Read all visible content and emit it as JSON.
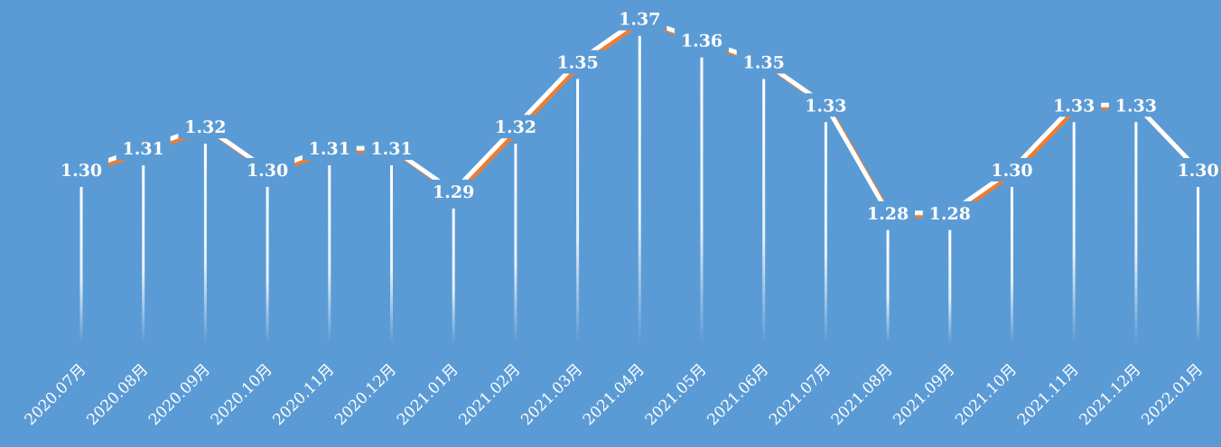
{
  "colors": {
    "background": "#5b9bd5",
    "line": "#ffffff",
    "line_shadow": "#ed7d31",
    "drop_line": "#ffffff"
  },
  "chart_data": {
    "type": "line",
    "title": "",
    "xlabel": "",
    "ylabel": "",
    "categories": [
      "2020.07月",
      "2020.08月",
      "2020.09月",
      "2020.10月",
      "2020.11月",
      "2020.12月",
      "2021.01月",
      "2021.02月",
      "2021.03月",
      "2021.04月",
      "2021.05月",
      "2021.06月",
      "2021.07月",
      "2021.08月",
      "2021.09月",
      "2021.10月",
      "2021.11月",
      "2021.12月",
      "2022.01月"
    ],
    "values": [
      1.3,
      1.31,
      1.32,
      1.3,
      1.31,
      1.31,
      1.29,
      1.32,
      1.35,
      1.37,
      1.36,
      1.35,
      1.33,
      1.28,
      1.28,
      1.3,
      1.33,
      1.33,
      1.3
    ],
    "value_labels": [
      "1.30",
      "1.31",
      "1.32",
      "1.30",
      "1.31",
      "1.31",
      "1.29",
      "1.32",
      "1.35",
      "1.37",
      "1.36",
      "1.35",
      "1.33",
      "1.28",
      "1.28",
      "1.30",
      "1.33",
      "1.33",
      "1.30"
    ],
    "drop_lines": true,
    "grid": false,
    "axes_visible": false
  }
}
